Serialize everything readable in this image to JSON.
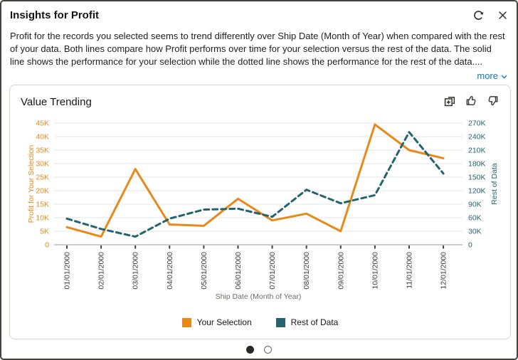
{
  "dialog": {
    "title": "Insights for Profit",
    "description": "Profit for the records you selected seems to trend differently over Ship Date (Month of Year) when compared with the rest of your data. Both lines compare how Profit performs over time for your selection versus the rest of the data. The solid line shows the performance for your selection while the dotted line shows the performance for the rest of the data....",
    "more_label": "more"
  },
  "card": {
    "title": "Value Trending"
  },
  "chart_data": {
    "type": "line",
    "title": "Value Trending",
    "x": [
      "01/01/2000",
      "02/01/2000",
      "03/01/2000",
      "04/01/2000",
      "05/01/2000",
      "06/01/2000",
      "07/01/2000",
      "08/01/2000",
      "09/01/2000",
      "10/01/2000",
      "11/01/2000",
      "12/01/2000"
    ],
    "xlabel": "Ship Date (Month of Year)",
    "grid": true,
    "legend_position": "bottom",
    "left_axis": {
      "label": "Profit for Your Selection",
      "color": "#e8891b",
      "max": 45000,
      "ticks": [
        "0",
        "5K",
        "10K",
        "15K",
        "20K",
        "25K",
        "30K",
        "35K",
        "40K",
        "45K"
      ]
    },
    "right_axis": {
      "label": "Rest of Data",
      "color": "#25636d",
      "max": 270000,
      "ticks": [
        "0",
        "30K",
        "60K",
        "90K",
        "120K",
        "150K",
        "180K",
        "210K",
        "240K",
        "270K"
      ]
    },
    "series": [
      {
        "name": "Your Selection",
        "axis": "left",
        "style": "solid",
        "color": "#e8891b",
        "values": [
          6500,
          3000,
          28000,
          7500,
          7000,
          17000,
          9000,
          11500,
          5000,
          44500,
          35000,
          32000
        ]
      },
      {
        "name": "Rest of Data",
        "axis": "right",
        "style": "dashed",
        "color": "#25636d",
        "values": [
          58000,
          35000,
          18000,
          58000,
          78000,
          80000,
          62000,
          122000,
          92000,
          110000,
          250000,
          158000
        ]
      }
    ]
  },
  "pagination": {
    "count": 2,
    "active": 0
  }
}
